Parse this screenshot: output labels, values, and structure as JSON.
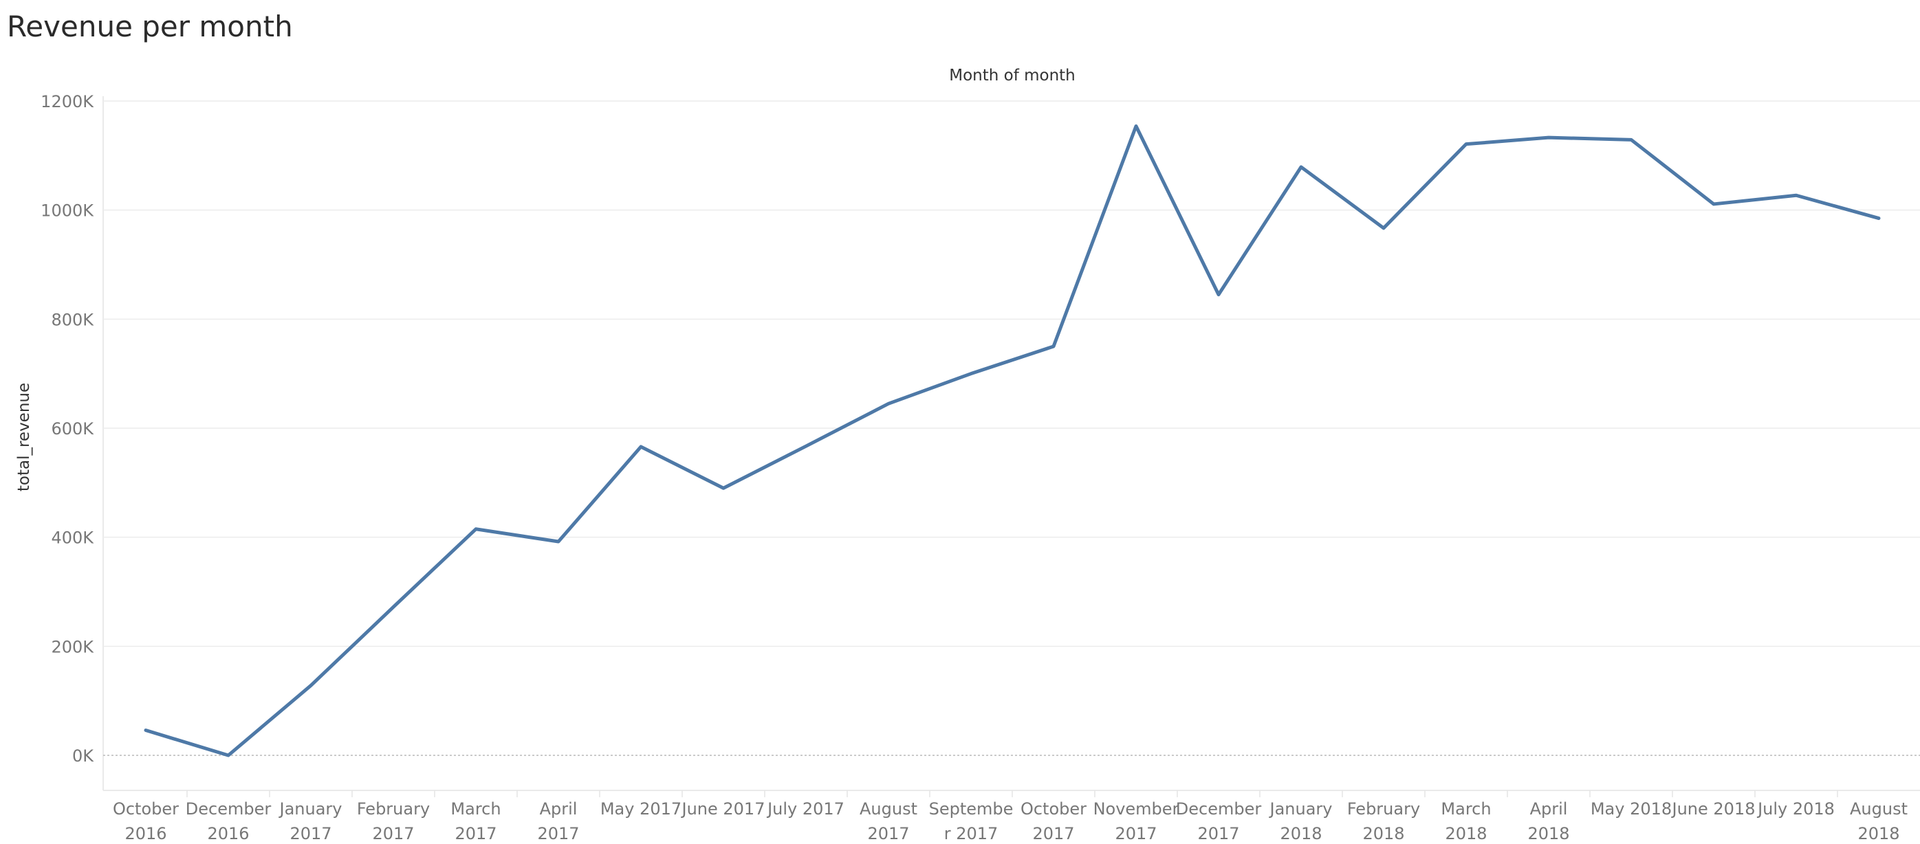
{
  "title": "Revenue per month",
  "chart_data": {
    "type": "line",
    "title": "Revenue per month",
    "header": "Month of month",
    "xlabel": "",
    "ylabel": "total_revenue",
    "categories": [
      [
        "October",
        "2016"
      ],
      [
        "December",
        "2016"
      ],
      [
        "January",
        "2017"
      ],
      [
        "February",
        "2017"
      ],
      [
        "March",
        "2017"
      ],
      [
        "April",
        "2017"
      ],
      [
        "May 2017"
      ],
      [
        "June 2017"
      ],
      [
        "July 2017"
      ],
      [
        "August",
        "2017"
      ],
      [
        "Septembe",
        "r 2017"
      ],
      [
        "October",
        "2017"
      ],
      [
        "November",
        "2017"
      ],
      [
        "December",
        "2017"
      ],
      [
        "January",
        "2018"
      ],
      [
        "February",
        "2018"
      ],
      [
        "March",
        "2018"
      ],
      [
        "April",
        "2018"
      ],
      [
        "May 2018"
      ],
      [
        "June 2018"
      ],
      [
        "July 2018"
      ],
      [
        "August",
        "2018"
      ]
    ],
    "series": [
      {
        "values": [
          46,
          0,
          128,
          272,
          415,
          392,
          566,
          490,
          567,
          645,
          700,
          750,
          1154,
          845,
          1079,
          967,
          1121,
          1133,
          1129,
          1011,
          1027,
          985
        ]
      }
    ],
    "y_unit": "K",
    "ylim": [
      0,
      1200
    ],
    "yticks": [
      0,
      200,
      400,
      600,
      800,
      1000,
      1200
    ],
    "ytick_labels": [
      "0K",
      "200K",
      "400K",
      "600K",
      "800K",
      "1000K",
      "1200K"
    ],
    "grid": true,
    "legend": "none",
    "line_color": "#4e79a7"
  }
}
